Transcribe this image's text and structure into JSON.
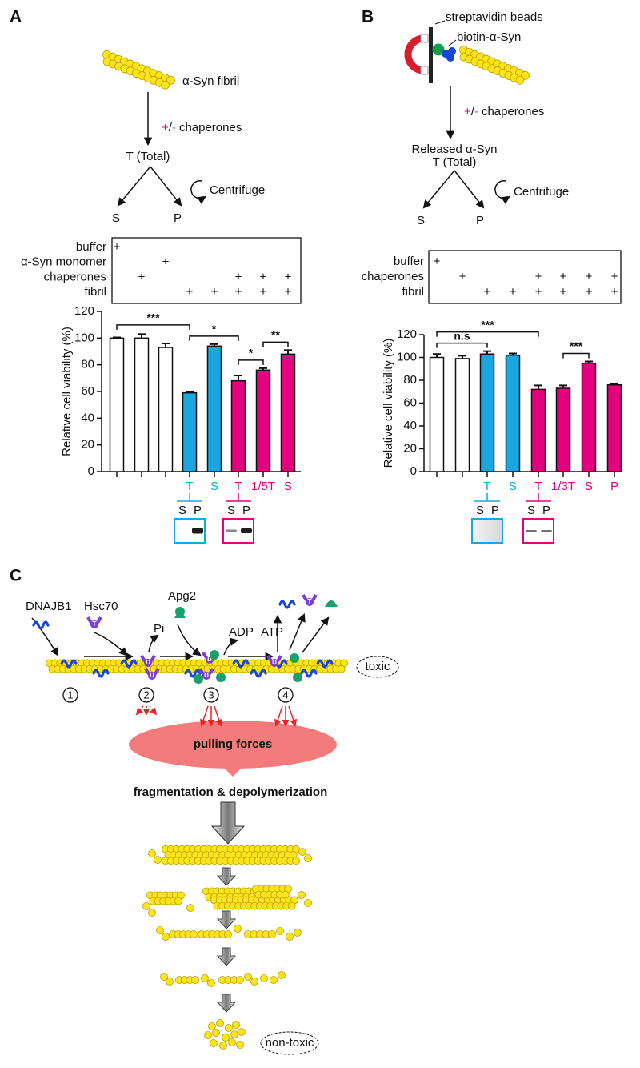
{
  "panel_labels": {
    "a": "A",
    "b": "B",
    "c": "C"
  },
  "diagram_a": {
    "fibril": "α-Syn fibril",
    "plus": "+",
    "slash": "/",
    "minus": "-",
    "treatment": "chaperones",
    "total": "T (Total)",
    "centrifuge": "Centrifuge",
    "s": "S",
    "p": "P"
  },
  "diagram_b": {
    "beads": "streptavidin beads",
    "biotin": "biotin-α-Syn",
    "plus": "+",
    "slash": "/",
    "minus": "-",
    "treatment": "chaperones",
    "released": "Released α-Syn",
    "total": "T (Total)",
    "centrifuge": "Centrifuge",
    "s": "S",
    "p": "P"
  },
  "table_a": {
    "rows": [
      {
        "label": "buffer",
        "cells": [
          "+",
          null,
          null,
          null,
          null,
          null,
          null,
          null
        ]
      },
      {
        "label": "α-Syn monomer",
        "cells": [
          null,
          null,
          "+",
          null,
          null,
          null,
          null,
          null
        ]
      },
      {
        "label": "chaperones",
        "cells": [
          null,
          "+",
          null,
          null,
          null,
          "+",
          "+",
          "+"
        ]
      },
      {
        "label": "fibril",
        "cells": [
          null,
          null,
          null,
          "+",
          "+",
          "+",
          "+",
          "+"
        ]
      }
    ]
  },
  "table_b": {
    "rows": [
      {
        "label": "buffer",
        "cells": [
          "+",
          null,
          null,
          null,
          null,
          null,
          null,
          null
        ]
      },
      {
        "label": "chaperones",
        "cells": [
          null,
          "+",
          null,
          null,
          "+",
          "+",
          "+",
          "+"
        ]
      },
      {
        "label": "fibril",
        "cells": [
          null,
          null,
          "+",
          "+",
          "+",
          "+",
          "+",
          "+"
        ]
      }
    ]
  },
  "chart_data": [
    {
      "type": "bar",
      "y_label": "Relative cell viability (%)",
      "categories": [
        null,
        null,
        null,
        "T",
        "S",
        "T",
        "1/5T",
        "S"
      ],
      "values": [
        100,
        100,
        93,
        59,
        94,
        68,
        76,
        88
      ],
      "errors": [
        0.5,
        3,
        3,
        1,
        1.5,
        4,
        1.5,
        3
      ],
      "colors": [
        "#ffffff",
        "#ffffff",
        "#ffffff",
        "#1aa6df",
        "#1aa6df",
        "#e5007d",
        "#e5007d",
        "#e5007d"
      ],
      "ylim": [
        0,
        120
      ],
      "yticks": [
        0,
        20,
        40,
        60,
        80,
        100,
        120
      ],
      "annotations": [
        {
          "label": "***",
          "from": 0,
          "to": 3
        },
        {
          "label": "*",
          "from": 3,
          "to": 5
        },
        {
          "label": "*",
          "from": 5,
          "to": 6
        },
        {
          "label": "**",
          "from": 6,
          "to": 7
        }
      ]
    },
    {
      "type": "bar",
      "y_label": "Relative cell viability (%)",
      "categories": [
        null,
        null,
        "T",
        "S",
        "T",
        "1/3T",
        "S",
        "P"
      ],
      "values": [
        100,
        99,
        103,
        102,
        72,
        73,
        95,
        76
      ],
      "errors": [
        3,
        2.5,
        2.5,
        1.5,
        3.5,
        2.5,
        1.5,
        0.5
      ],
      "colors": [
        "#ffffff",
        "#ffffff",
        "#1aa6df",
        "#1aa6df",
        "#e5007d",
        "#e5007d",
        "#e5007d",
        "#e5007d"
      ],
      "ylim": [
        0,
        120
      ],
      "yticks": [
        0,
        20,
        40,
        60,
        80,
        100,
        120
      ],
      "annotations": [
        {
          "label": "n.s",
          "from": 0,
          "to": 2
        },
        {
          "label": "***",
          "from": 0,
          "to": 4
        },
        {
          "label": "***",
          "from": 5,
          "to": 6
        }
      ]
    }
  ],
  "blots_a": [
    {
      "s": "S",
      "p": "P"
    },
    {
      "s": "S",
      "p": "P"
    }
  ],
  "blots_b": [
    {
      "s": "S",
      "p": "P"
    },
    {
      "s": "S",
      "p": "P"
    }
  ],
  "panel_c": {
    "dnajb1": "DNAJB1",
    "hsc70": "Hsc70",
    "apg2": "Apg2",
    "pi": "Pi",
    "adp": "ADP",
    "atp": "ATP",
    "toxic": "toxic",
    "steps": [
      "1",
      "2",
      "3",
      "4"
    ],
    "t": "T",
    "d": "D",
    "pulling": "pulling forces",
    "fragmentation": "fragmentation & depolymerization",
    "non_toxic": "non-toxic"
  }
}
